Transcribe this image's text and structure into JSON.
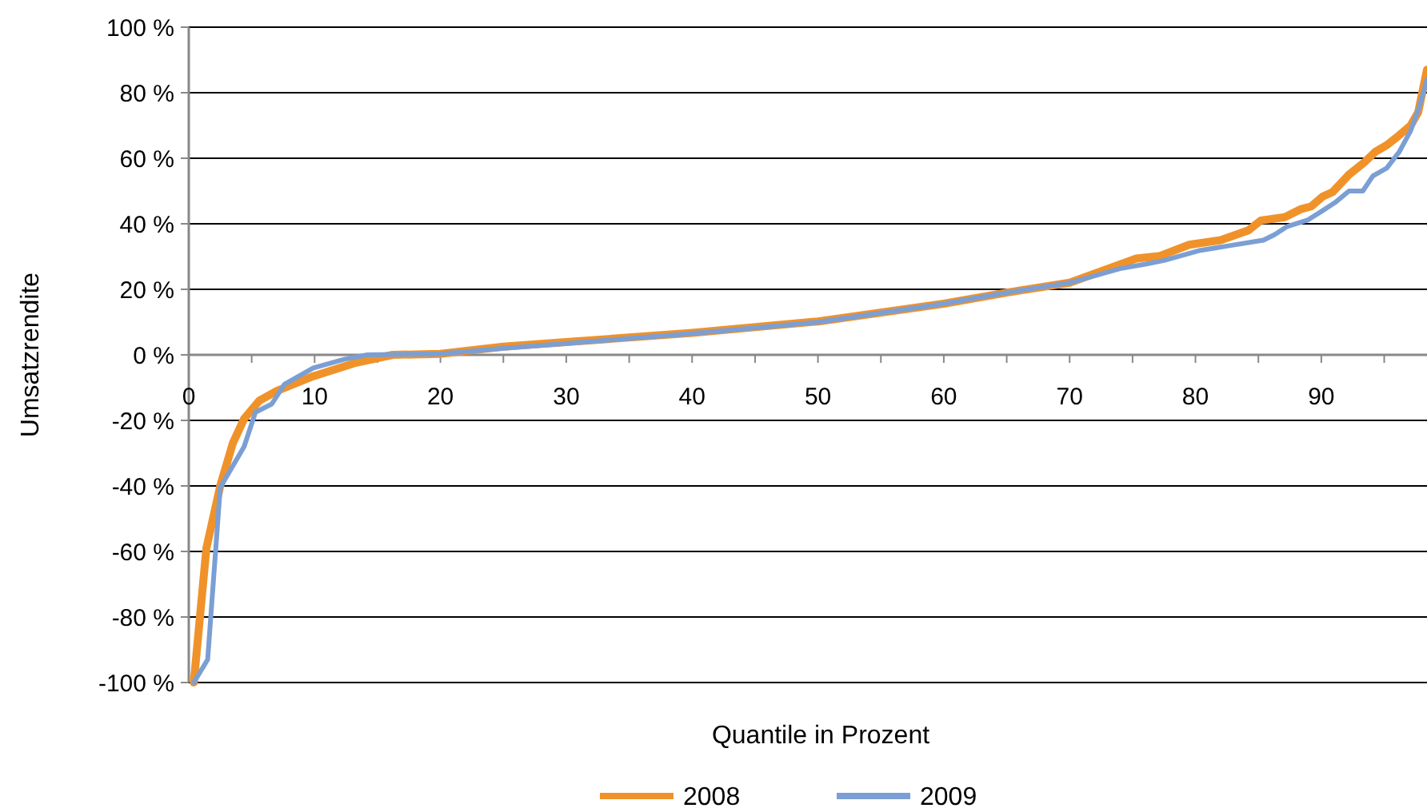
{
  "chart_data": {
    "type": "line",
    "xlabel": "Quantile in Prozent",
    "ylabel": "Umsatzrendite",
    "xlim": [
      0,
      98.4
    ],
    "ylim": [
      -100,
      100
    ],
    "xticks": [
      0,
      {
        "value": 5,
        "label": null
      },
      10,
      {
        "value": 15,
        "label": null
      },
      20,
      {
        "value": 25,
        "label": null
      },
      30,
      {
        "value": 35,
        "label": null
      },
      40,
      {
        "value": 45,
        "label": null
      },
      50,
      {
        "value": 55,
        "label": null
      },
      60,
      {
        "value": 65,
        "label": null
      },
      70,
      {
        "value": 75,
        "label": null
      },
      80,
      {
        "value": 85,
        "label": null
      },
      90,
      {
        "value": 95,
        "label": null
      }
    ],
    "yticks": [
      {
        "value": -100,
        "label": "-100 %"
      },
      {
        "value": -80,
        "label": "-80 %"
      },
      {
        "value": -60,
        "label": "-60 %"
      },
      {
        "value": -40,
        "label": "-40 %"
      },
      {
        "value": -20,
        "label": "-20 %"
      },
      {
        "value": 0,
        "label": "0 %"
      },
      {
        "value": 20,
        "label": "20 %"
      },
      {
        "value": 40,
        "label": "40 %"
      },
      {
        "value": 60,
        "label": "60 %"
      },
      {
        "value": 80,
        "label": "80 %"
      },
      {
        "value": 100,
        "label": "100 %"
      }
    ],
    "grid": "y",
    "legend": "bottom",
    "marker": "none",
    "line_style": "solid",
    "series": [
      {
        "name": "2008",
        "color": "#f0922a",
        "x": [
          0.4,
          1.4,
          2.5,
          3.5,
          4.4,
          5.6,
          7,
          9.9,
          13.3,
          16.2,
          20,
          25,
          30,
          40,
          50,
          60,
          65,
          70,
          75.3,
          77.2,
          79.5,
          82,
          84.2,
          85.2,
          86.3,
          87.1,
          88.4,
          89.2,
          90.1,
          90.9,
          92.2,
          93.4,
          94.3,
          95.2,
          96,
          97.1,
          97.7,
          98.4
        ],
        "values": [
          -100,
          -59,
          -40,
          -27,
          -19.5,
          -14,
          -11,
          -6.5,
          -2.4,
          0,
          0.3,
          2.5,
          3.9,
          6.7,
          10.2,
          15.6,
          19,
          22,
          29.4,
          30.2,
          33.6,
          35,
          38,
          41,
          41.6,
          42,
          44.5,
          45.3,
          48.3,
          49.7,
          55,
          58.7,
          62,
          64,
          66.4,
          70,
          74,
          87
        ]
      },
      {
        "name": "2009",
        "color": "#7b9fd4",
        "x": [
          0.4,
          1.5,
          2.5,
          4.4,
          5.3,
          6.6,
          7.6,
          9.9,
          12.4,
          14.2,
          20,
          25,
          30,
          40,
          50,
          60,
          65,
          70,
          74,
          76.2,
          77.5,
          80.4,
          82.5,
          85.4,
          86.3,
          87.3,
          88.9,
          90.1,
          91.1,
          92.2,
          93.3,
          94.1,
          95.2,
          96.2,
          97.1,
          97.8,
          98.4
        ],
        "values": [
          -100,
          -93,
          -40.5,
          -28,
          -17.5,
          -15,
          -9,
          -4,
          -1.3,
          0,
          0.3,
          2,
          3.5,
          6.5,
          10,
          15.6,
          19,
          22,
          26.3,
          27.8,
          28.8,
          31.9,
          33.2,
          35,
          36.7,
          39.2,
          41.1,
          44,
          46.5,
          50,
          50,
          54.6,
          57,
          62,
          68.4,
          75.8,
          84
        ]
      }
    ]
  }
}
